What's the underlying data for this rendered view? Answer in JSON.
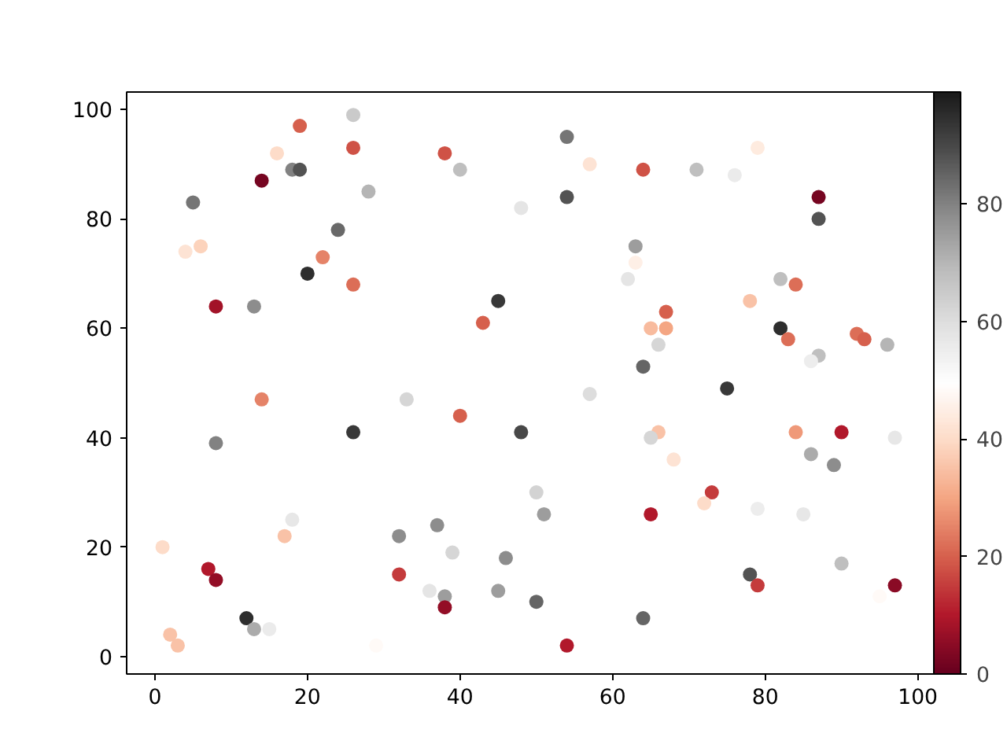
{
  "chart_data": {
    "type": "scatter",
    "marker": "circle",
    "x": [
      26,
      19,
      16,
      26,
      38,
      18,
      19,
      40,
      14,
      28,
      5,
      54,
      57,
      64,
      71,
      76,
      79,
      54,
      87,
      87,
      48,
      24,
      4,
      6,
      22,
      20,
      26,
      8,
      13,
      45,
      43,
      63,
      63,
      62,
      67,
      65,
      67,
      66,
      64,
      78,
      82,
      84,
      82,
      83,
      87,
      86,
      92,
      93,
      96,
      75,
      14,
      33,
      26,
      40,
      48,
      57,
      8,
      66,
      65,
      68,
      84,
      90,
      97,
      86,
      89,
      1,
      7,
      8,
      18,
      17,
      12,
      13,
      15,
      2,
      3,
      32,
      37,
      39,
      32,
      36,
      38,
      38,
      45,
      46,
      29,
      50,
      51,
      50,
      54,
      64,
      65,
      73,
      72,
      79,
      85,
      78,
      79,
      90,
      97,
      95
    ],
    "values": [
      99,
      97,
      92,
      93,
      92,
      89,
      89,
      89,
      87,
      85,
      83,
      95,
      90,
      89,
      89,
      88,
      93,
      84,
      84,
      80,
      82,
      78,
      74,
      75,
      73,
      70,
      68,
      64,
      64,
      65,
      61,
      75,
      72,
      69,
      63,
      60,
      60,
      57,
      53,
      65,
      69,
      68,
      60,
      58,
      55,
      54,
      59,
      58,
      57,
      49,
      47,
      47,
      41,
      44,
      41,
      48,
      39,
      41,
      40,
      36,
      41,
      41,
      40,
      37,
      35,
      20,
      16,
      14,
      25,
      22,
      7,
      5,
      5,
      4,
      2,
      22,
      24,
      19,
      15,
      12,
      11,
      9,
      12,
      18,
      2,
      30,
      26,
      10,
      2,
      7,
      26,
      30,
      28,
      27,
      26,
      15,
      13,
      17,
      13,
      11
    ],
    "cvalues": [
      65,
      20,
      40,
      18,
      18,
      80,
      88,
      68,
      2,
      70,
      82,
      82,
      42,
      18,
      68,
      56,
      44,
      88,
      2,
      88,
      58,
      84,
      42,
      38,
      25,
      95,
      22,
      8,
      78,
      93,
      20,
      75,
      45,
      58,
      20,
      34,
      30,
      62,
      85,
      35,
      68,
      22,
      95,
      22,
      68,
      55,
      22,
      20,
      70,
      93,
      25,
      62,
      93,
      20,
      90,
      60,
      80,
      35,
      62,
      42,
      28,
      10,
      57,
      72,
      78,
      40,
      10,
      6,
      57,
      35,
      95,
      72,
      56,
      35,
      35,
      78,
      78,
      62,
      15,
      58,
      75,
      6,
      75,
      78,
      48,
      63,
      75,
      85,
      10,
      85,
      10,
      15,
      40,
      55,
      57,
      88,
      15,
      68,
      5,
      48
    ],
    "xlim": [
      -3.7,
      102.1
    ],
    "ylim": [
      -3.2,
      103.2
    ],
    "xticks": [
      0,
      20,
      40,
      60,
      80,
      100
    ],
    "yticks": [
      0,
      20,
      40,
      60,
      80,
      100
    ],
    "clim": [
      0,
      99
    ],
    "cticks": [
      0,
      20,
      40,
      60,
      80
    ]
  }
}
